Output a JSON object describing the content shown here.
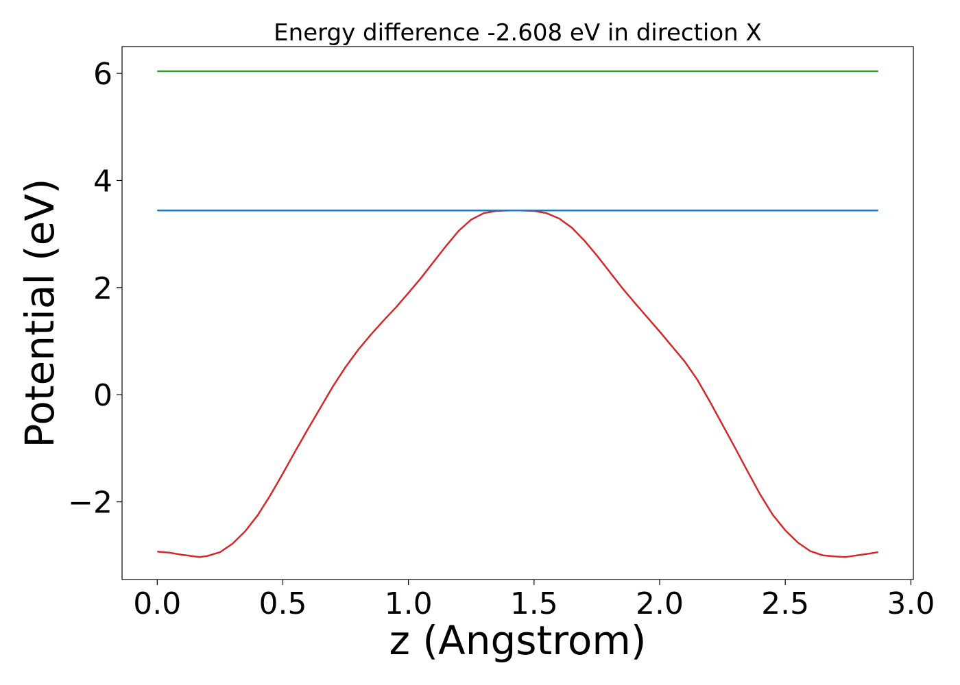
{
  "chart_data": {
    "type": "line",
    "title": "Energy difference -2.608 eV in direction X",
    "xlabel": "z (Angstrom)",
    "ylabel": "Potential (eV)",
    "xlim": [
      -0.14,
      3.01
    ],
    "ylim": [
      -3.45,
      6.5
    ],
    "xticks": [
      0.0,
      0.5,
      1.0,
      1.5,
      2.0,
      2.5,
      3.0
    ],
    "xtick_labels": [
      "0.0",
      "0.5",
      "1.0",
      "1.5",
      "2.0",
      "2.5",
      "3.0"
    ],
    "yticks": [
      -2,
      0,
      2,
      4,
      6
    ],
    "ytick_labels": [
      "−2",
      "0",
      "2",
      "4",
      "6"
    ],
    "grid": false,
    "series": [
      {
        "color": "#d62728",
        "x": [
          0.0,
          0.05,
          0.1,
          0.15,
          0.17,
          0.2,
          0.25,
          0.3,
          0.35,
          0.4,
          0.45,
          0.5,
          0.55,
          0.6,
          0.65,
          0.7,
          0.75,
          0.8,
          0.85,
          0.9,
          0.95,
          1.0,
          1.05,
          1.1,
          1.15,
          1.2,
          1.25,
          1.3,
          1.35,
          1.4,
          1.45,
          1.5,
          1.55,
          1.6,
          1.65,
          1.7,
          1.75,
          1.8,
          1.85,
          1.9,
          1.95,
          2.0,
          2.05,
          2.1,
          2.15,
          2.2,
          2.25,
          2.3,
          2.35,
          2.4,
          2.45,
          2.5,
          2.55,
          2.6,
          2.65,
          2.7,
          2.74,
          2.8,
          2.87
        ],
        "y": [
          -2.93,
          -2.95,
          -2.99,
          -3.02,
          -3.03,
          -3.01,
          -2.94,
          -2.78,
          -2.55,
          -2.25,
          -1.88,
          -1.47,
          -1.05,
          -0.64,
          -0.24,
          0.16,
          0.52,
          0.84,
          1.12,
          1.38,
          1.63,
          1.9,
          2.18,
          2.48,
          2.78,
          3.06,
          3.27,
          3.39,
          3.43,
          3.44,
          3.44,
          3.43,
          3.39,
          3.29,
          3.12,
          2.88,
          2.6,
          2.3,
          2.0,
          1.72,
          1.45,
          1.18,
          0.9,
          0.62,
          0.28,
          -0.13,
          -0.56,
          -0.99,
          -1.43,
          -1.86,
          -2.24,
          -2.53,
          -2.76,
          -2.92,
          -3.0,
          -3.02,
          -3.03,
          -2.99,
          -2.94
        ]
      },
      {
        "color": "#1f77b4",
        "x": [
          0.0,
          2.87
        ],
        "y": [
          3.44,
          3.44
        ]
      },
      {
        "color": "#2ca02c",
        "x": [
          0.0,
          2.87
        ],
        "y": [
          6.04,
          6.04
        ]
      }
    ]
  }
}
